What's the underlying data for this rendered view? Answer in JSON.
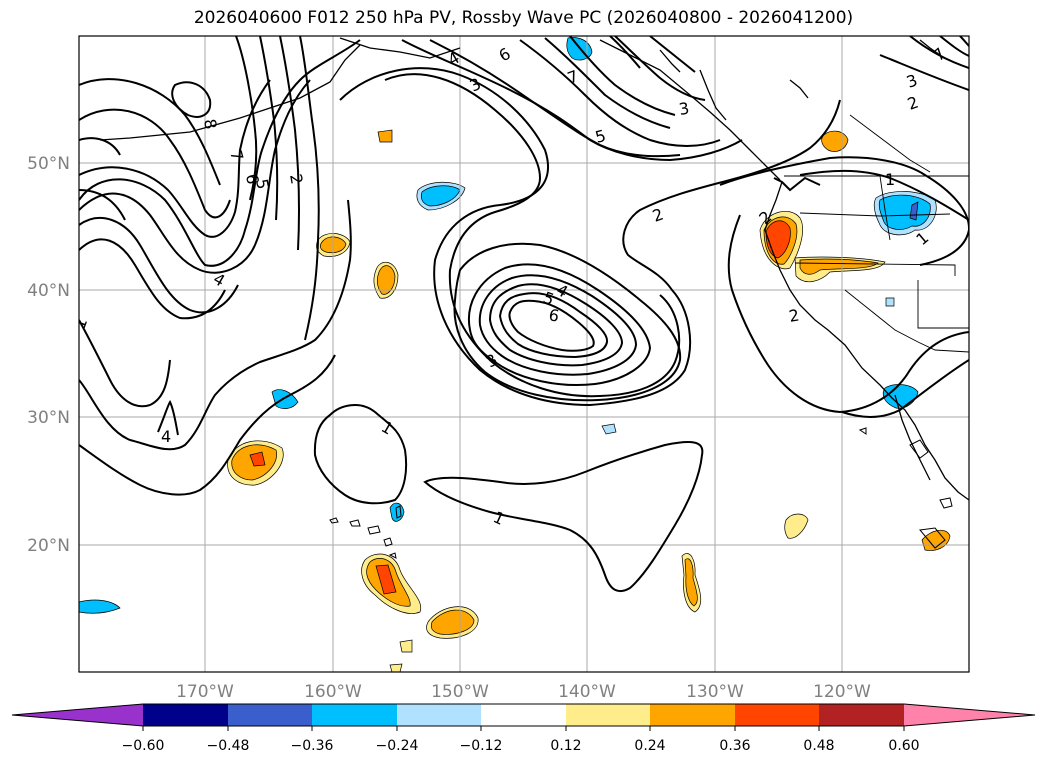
{
  "title": "2026040600 F012 250 hPa PV, Rossby Wave PC (2026040800 - 2026041200)",
  "axes": {
    "lat_labels": [
      "50°N",
      "40°N",
      "30°N",
      "20°N"
    ],
    "lon_labels": [
      "170°W",
      "160°W",
      "150°W",
      "140°W",
      "130°W",
      "120°W"
    ]
  },
  "contour_labels": [
    "8",
    "7",
    "6",
    "5",
    "2",
    "4",
    "1",
    "4",
    "6",
    "4",
    "3",
    "7",
    "5",
    "3",
    "2",
    "7",
    "3",
    "2",
    "1",
    "2",
    "4",
    "5",
    "6",
    "3",
    "1",
    "1",
    "2",
    "1"
  ],
  "colorbar": {
    "ticks": [
      "−0.60",
      "−0.48",
      "−0.36",
      "−0.24",
      "−0.12",
      "0.12",
      "0.24",
      "0.36",
      "0.48",
      "0.60"
    ],
    "colors": [
      "#9932cc",
      "#00008b",
      "#3a5fcd",
      "#00bfff",
      "#b0e2ff",
      "#ffffff",
      "#ffec8b",
      "#ffa500",
      "#ff4500",
      "#b22222",
      "#ff82ab"
    ]
  }
}
